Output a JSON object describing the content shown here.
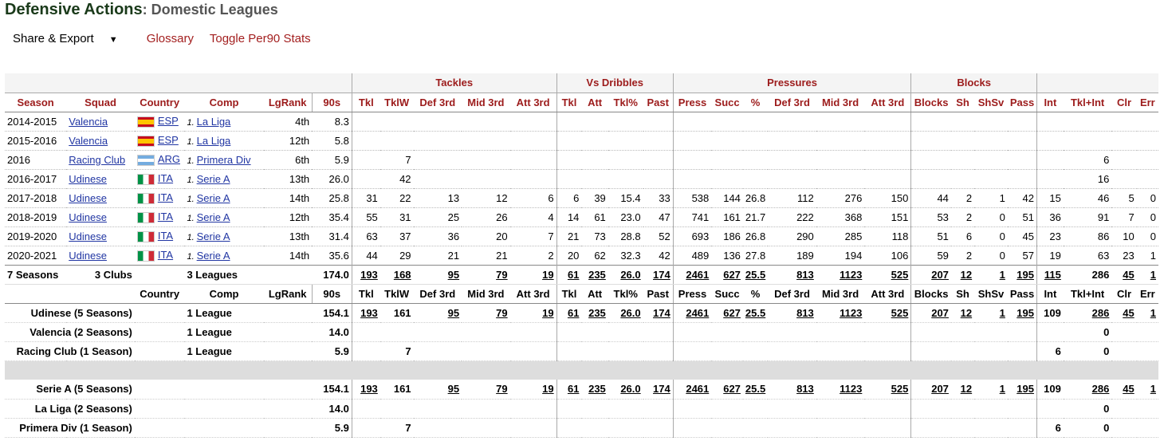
{
  "title": {
    "main": "Defensive Actions",
    "sep": ": ",
    "sub": "Domestic Leagues"
  },
  "toolbar": {
    "share": "Share & Export",
    "glossary": "Glossary",
    "toggle": "Toggle Per90 Stats"
  },
  "groups": {
    "tackles": "Tackles",
    "vs_dribbles": "Vs Dribbles",
    "pressures": "Pressures",
    "blocks": "Blocks"
  },
  "headers": [
    "Season",
    "Squad",
    "Country",
    "Comp",
    "LgRank",
    "90s",
    "Tkl",
    "TklW",
    "Def 3rd",
    "Mid 3rd",
    "Att 3rd",
    "Tkl",
    "Att",
    "Tkl%",
    "Past",
    "Press",
    "Succ",
    "%",
    "Def 3rd",
    "Mid 3rd",
    "Att 3rd",
    "Blocks",
    "Sh",
    "ShSv",
    "Pass",
    "Int",
    "Tkl+Int",
    "Clr",
    "Err"
  ],
  "rows": [
    {
      "season": "2014-2015",
      "squad": "Valencia",
      "flag": "esp",
      "country": "ESP",
      "comp_num": "1.",
      "comp": "La Liga",
      "rank": "4th",
      "n90": "8.3",
      "stats": [
        "",
        "",
        "",
        "",
        "",
        "",
        "",
        "",
        "",
        "",
        "",
        "",
        "",
        "",
        "",
        "",
        "",
        "",
        "",
        "",
        "",
        "",
        "",
        ""
      ]
    },
    {
      "season": "2015-2016",
      "squad": "Valencia",
      "flag": "esp",
      "country": "ESP",
      "comp_num": "1.",
      "comp": "La Liga",
      "rank": "12th",
      "n90": "5.8",
      "stats": [
        "",
        "",
        "",
        "",
        "",
        "",
        "",
        "",
        "",
        "",
        "",
        "",
        "",
        "",
        "",
        "",
        "",
        "",
        "",
        "",
        "",
        "",
        "",
        ""
      ]
    },
    {
      "season": "2016",
      "squad": "Racing Club",
      "flag": "arg",
      "country": "ARG",
      "comp_num": "1.",
      "comp": "Primera Div",
      "rank": "6th",
      "n90": "5.9",
      "stats": [
        "",
        "7",
        "",
        "",
        "",
        "",
        "",
        "",
        "",
        "",
        "",
        "",
        "",
        "",
        "",
        "",
        "",
        "",
        "",
        "",
        "6",
        "",
        "",
        ""
      ]
    },
    {
      "season": "2016-2017",
      "squad": "Udinese",
      "flag": "ita",
      "country": "ITA",
      "comp_num": "1.",
      "comp": "Serie A",
      "rank": "13th",
      "n90": "26.0",
      "stats": [
        "",
        "42",
        "",
        "",
        "",
        "",
        "",
        "",
        "",
        "",
        "",
        "",
        "",
        "",
        "",
        "",
        "",
        "",
        "",
        "",
        "16",
        "",
        "",
        ""
      ]
    },
    {
      "season": "2017-2018",
      "squad": "Udinese",
      "flag": "ita",
      "country": "ITA",
      "comp_num": "1.",
      "comp": "Serie A",
      "rank": "14th",
      "n90": "25.8",
      "stats": [
        "31",
        "22",
        "13",
        "12",
        "6",
        "6",
        "39",
        "15.4",
        "33",
        "538",
        "144",
        "26.8",
        "112",
        "276",
        "150",
        "44",
        "2",
        "1",
        "42",
        "15",
        "46",
        "5",
        "0",
        ""
      ]
    },
    {
      "season": "2018-2019",
      "squad": "Udinese",
      "flag": "ita",
      "country": "ITA",
      "comp_num": "1.",
      "comp": "Serie A",
      "rank": "12th",
      "n90": "35.4",
      "stats": [
        "55",
        "31",
        "25",
        "26",
        "4",
        "14",
        "61",
        "23.0",
        "47",
        "741",
        "161",
        "21.7",
        "222",
        "368",
        "151",
        "53",
        "2",
        "0",
        "51",
        "36",
        "91",
        "7",
        "0",
        ""
      ]
    },
    {
      "season": "2019-2020",
      "squad": "Udinese",
      "flag": "ita",
      "country": "ITA",
      "comp_num": "1.",
      "comp": "Serie A",
      "rank": "13th",
      "n90": "31.4",
      "stats": [
        "63",
        "37",
        "36",
        "20",
        "7",
        "21",
        "73",
        "28.8",
        "52",
        "693",
        "186",
        "26.8",
        "290",
        "285",
        "118",
        "51",
        "6",
        "0",
        "45",
        "23",
        "86",
        "10",
        "0",
        ""
      ]
    },
    {
      "season": "2020-2021",
      "squad": "Udinese",
      "flag": "ita",
      "country": "ITA",
      "comp_num": "1.",
      "comp": "Serie A",
      "rank": "14th",
      "n90": "35.6",
      "stats": [
        "44",
        "29",
        "21",
        "21",
        "2",
        "20",
        "62",
        "32.3",
        "42",
        "489",
        "136",
        "27.8",
        "189",
        "194",
        "106",
        "59",
        "2",
        "0",
        "57",
        "19",
        "63",
        "23",
        "1",
        ""
      ]
    }
  ],
  "summary": {
    "seasons": "7 Seasons",
    "clubs": "3 Clubs",
    "leagues": "3 Leagues",
    "n90": "174.0",
    "stats": [
      "193",
      "168",
      "95",
      "79",
      "19",
      "61",
      "235",
      "26.0",
      "174",
      "2461",
      "627",
      "25.5",
      "813",
      "1123",
      "525",
      "207",
      "12",
      "1",
      "195",
      "115",
      "286",
      "45",
      "1"
    ]
  },
  "sub_headers": [
    "Country",
    "Comp",
    "LgRank",
    "90s",
    "Tkl",
    "TklW",
    "Def 3rd",
    "Mid 3rd",
    "Att 3rd",
    "Tkl",
    "Att",
    "Tkl%",
    "Past",
    "Press",
    "Succ",
    "%",
    "Def 3rd",
    "Mid 3rd",
    "Att 3rd",
    "Blocks",
    "Sh",
    "ShSv",
    "Pass",
    "Int",
    "Tkl+Int",
    "Clr",
    "Err"
  ],
  "clubs": [
    {
      "name": "Udinese (5 Seasons)",
      "comp": "1 League",
      "n90": "154.1",
      "stats": [
        "193",
        "161",
        "95",
        "79",
        "19",
        "61",
        "235",
        "26.0",
        "174",
        "2461",
        "627",
        "25.5",
        "813",
        "1123",
        "525",
        "207",
        "12",
        "1",
        "195",
        "109",
        "286",
        "45",
        "1"
      ]
    },
    {
      "name": "Valencia (2 Seasons)",
      "comp": "1 League",
      "n90": "14.0",
      "stats": [
        "",
        "",
        "",
        "",
        "",
        "",
        "",
        "",
        "",
        "",
        "",
        "",
        "",
        "",
        "",
        "",
        "",
        "",
        "",
        "",
        "0",
        "",
        ""
      ]
    },
    {
      "name": "Racing Club (1 Season)",
      "comp": "1 League",
      "n90": "5.9",
      "stats": [
        "",
        "7",
        "",
        "",
        "",
        "",
        "",
        "",
        "",
        "",
        "",
        "",
        "",
        "",
        "",
        "",
        "",
        "",
        "",
        "6",
        "0",
        "",
        ""
      ]
    }
  ],
  "leagues": [
    {
      "name": "Serie A (5 Seasons)",
      "n90": "154.1",
      "stats": [
        "193",
        "161",
        "95",
        "79",
        "19",
        "61",
        "235",
        "26.0",
        "174",
        "2461",
        "627",
        "25.5",
        "813",
        "1123",
        "525",
        "207",
        "12",
        "1",
        "195",
        "109",
        "286",
        "45",
        "1"
      ]
    },
    {
      "name": "La Liga (2 Seasons)",
      "n90": "14.0",
      "stats": [
        "",
        "",
        "",
        "",
        "",
        "",
        "",
        "",
        "",
        "",
        "",
        "",
        "",
        "",
        "",
        "",
        "",
        "",
        "",
        "",
        "0",
        "",
        ""
      ]
    },
    {
      "name": "Primera Div (1 Season)",
      "n90": "5.9",
      "stats": [
        "",
        "7",
        "",
        "",
        "",
        "",
        "",
        "",
        "",
        "",
        "",
        "",
        "",
        "",
        "",
        "",
        "",
        "",
        "",
        "6",
        "0",
        "",
        ""
      ]
    }
  ]
}
